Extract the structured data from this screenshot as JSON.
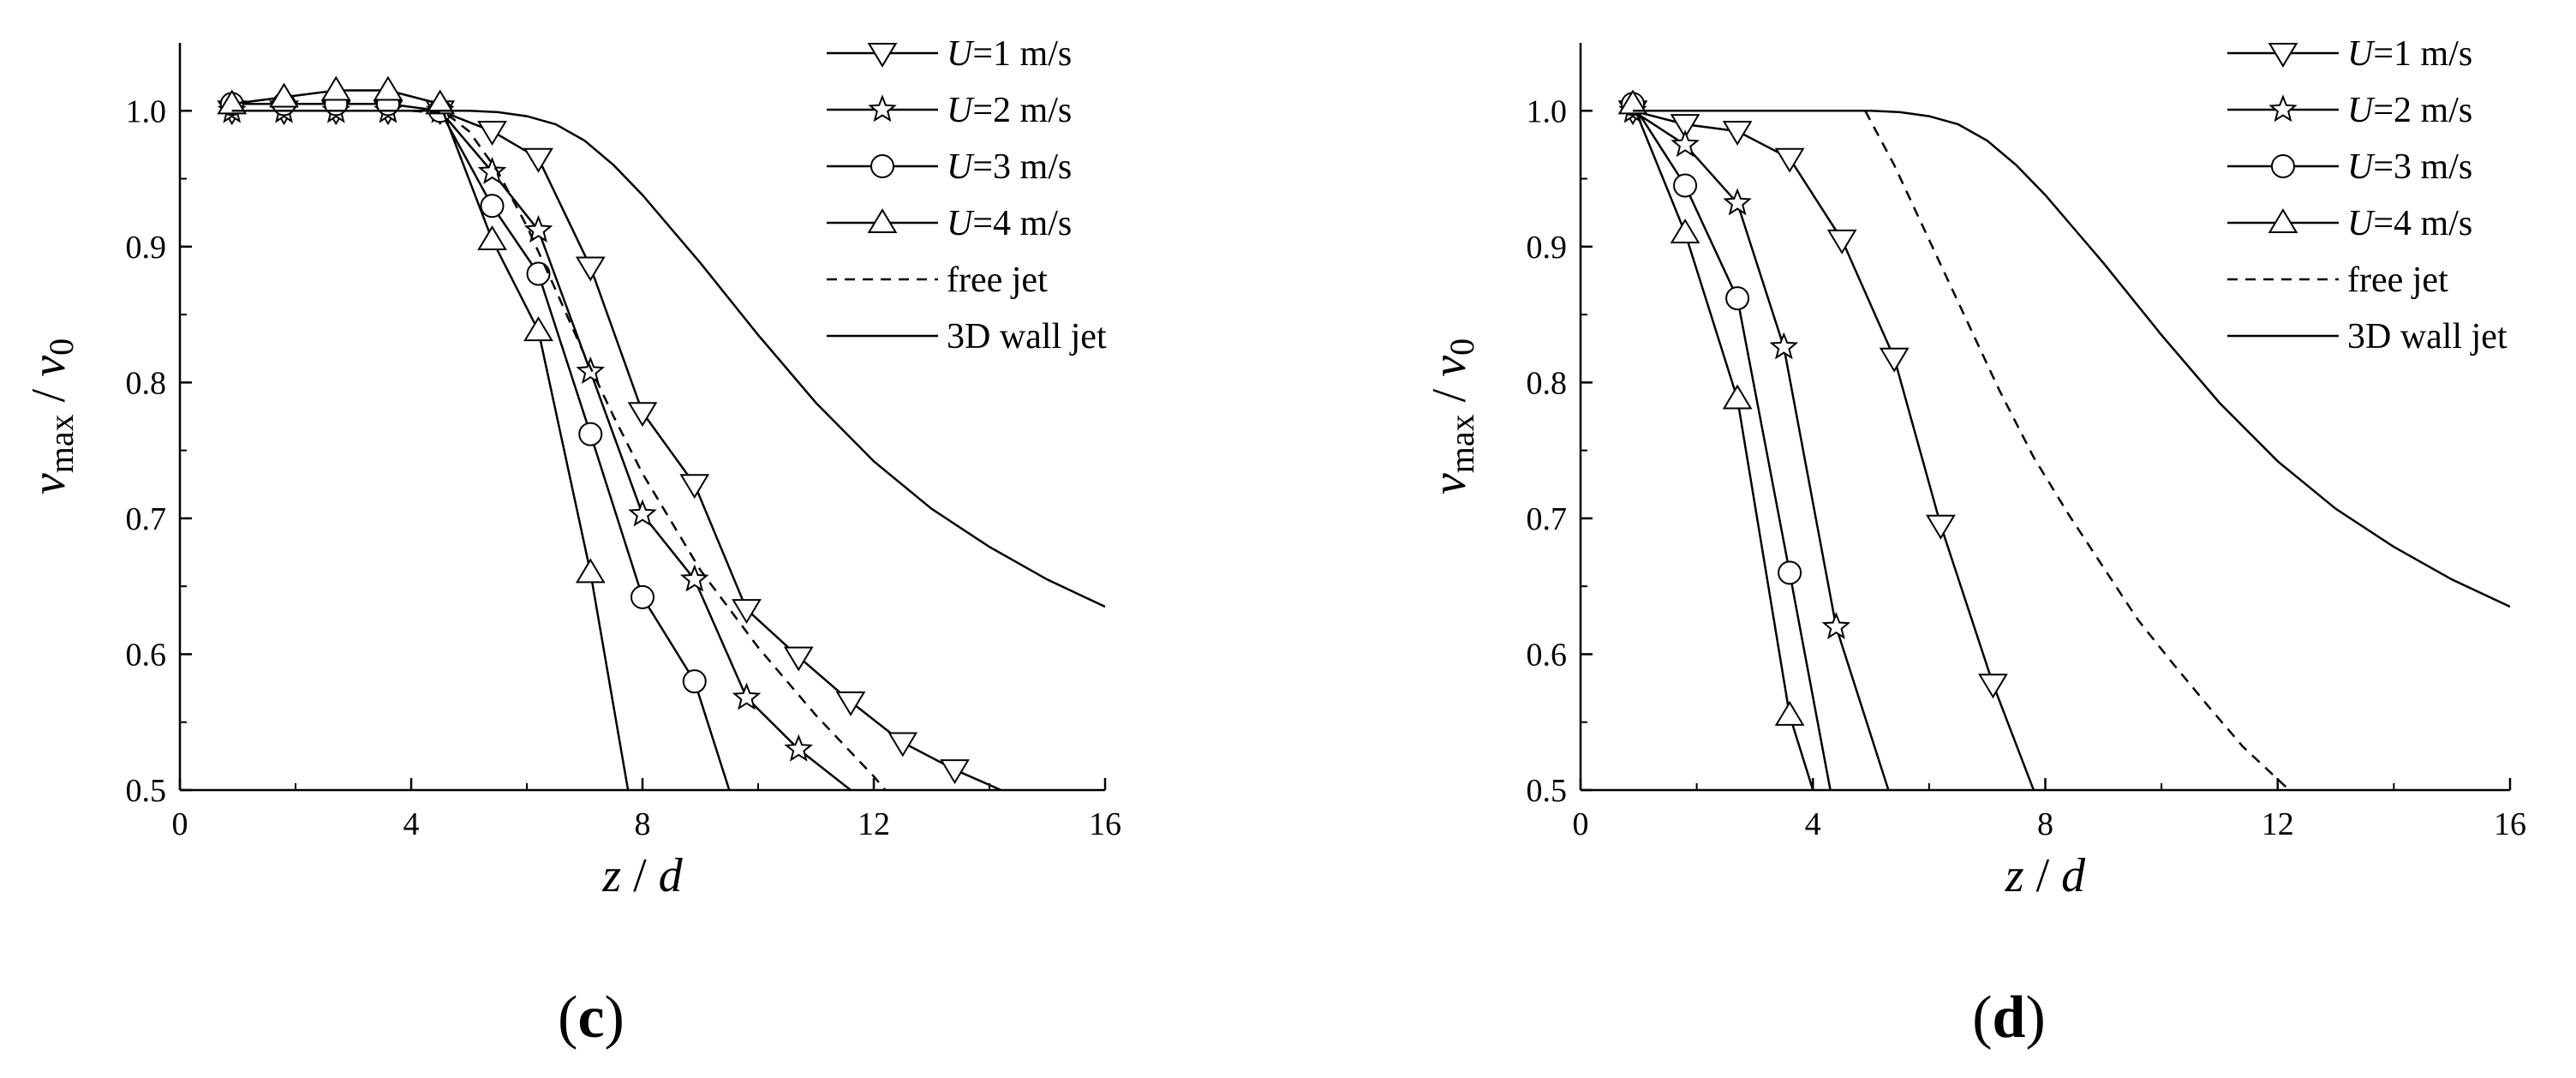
{
  "chart_data": [
    {
      "panel_label": "(c)",
      "type": "line",
      "xlabel": "z / d",
      "ylabel": "v_max / v_0",
      "xlim": [
        0,
        16
      ],
      "ylim": [
        0.5,
        1.05
      ],
      "xticks": [
        0,
        4,
        8,
        12,
        16
      ],
      "yticks": [
        0.5,
        0.6,
        0.7,
        0.8,
        0.9,
        1.0
      ],
      "grid": false,
      "legend": "top-right",
      "series": [
        {
          "name": "U=1 m/s",
          "marker": "triangle-down",
          "line": "solid",
          "x": [
            0.9,
            1.8,
            2.7,
            3.6,
            4.5,
            5.4,
            6.2,
            7.1,
            8.0,
            8.9,
            9.8,
            10.7,
            11.6,
            12.5,
            13.4,
            14.2
          ],
          "y": [
            1.0,
            1.0,
            1.0,
            1.0,
            1.0,
            0.985,
            0.965,
            0.885,
            0.778,
            0.725,
            0.633,
            0.598,
            0.565,
            0.535,
            0.515,
            0.5
          ]
        },
        {
          "name": "U=2 m/s",
          "marker": "star",
          "line": "solid",
          "x": [
            0.9,
            1.8,
            2.7,
            3.6,
            4.5,
            5.4,
            6.2,
            7.1,
            8.0,
            8.9,
            9.8,
            10.7,
            11.6
          ],
          "y": [
            1.0,
            1.0,
            1.0,
            1.0,
            1.0,
            0.955,
            0.912,
            0.808,
            0.703,
            0.655,
            0.568,
            0.53,
            0.5
          ]
        },
        {
          "name": "U=3 m/s",
          "marker": "circle",
          "line": "solid",
          "x": [
            0.9,
            1.8,
            2.7,
            3.6,
            4.5,
            5.4,
            6.2,
            7.1,
            8.0,
            8.9,
            9.5
          ],
          "y": [
            1.005,
            1.005,
            1.005,
            1.005,
            1.0,
            0.93,
            0.88,
            0.762,
            0.642,
            0.58,
            0.5
          ]
        },
        {
          "name": "U=4 m/s",
          "marker": "triangle-up",
          "line": "solid",
          "x": [
            0.9,
            1.8,
            2.7,
            3.6,
            4.5,
            5.4,
            6.2,
            7.1,
            7.75
          ],
          "y": [
            1.005,
            1.01,
            1.015,
            1.015,
            1.005,
            0.905,
            0.838,
            0.66,
            0.5
          ]
        },
        {
          "name": "free jet",
          "marker": "none",
          "line": "dashed",
          "x": [
            0.9,
            4.0,
            4.6,
            5.0,
            5.5,
            6.0,
            6.5,
            7.0,
            7.5,
            8.0,
            9.0,
            10.0,
            11.0,
            12.0,
            12.2
          ],
          "y": [
            1.0,
            1.0,
            0.998,
            0.985,
            0.955,
            0.915,
            0.868,
            0.82,
            0.775,
            0.733,
            0.662,
            0.605,
            0.555,
            0.51,
            0.5
          ]
        },
        {
          "name": "3D wall jet",
          "marker": "none",
          "line": "solid",
          "x": [
            0.9,
            2,
            3,
            4,
            5,
            5.5,
            6,
            6.5,
            7,
            7.5,
            8,
            9,
            10,
            11,
            12,
            13,
            14,
            15,
            16
          ],
          "y": [
            1.0,
            1.0,
            1.0,
            1.0,
            1.0,
            0.999,
            0.996,
            0.99,
            0.978,
            0.96,
            0.938,
            0.888,
            0.835,
            0.785,
            0.742,
            0.707,
            0.679,
            0.655,
            0.635
          ]
        }
      ]
    },
    {
      "panel_label": "(d)",
      "type": "line",
      "xlabel": "z / d",
      "ylabel": "v_max / v_0",
      "xlim": [
        0,
        16
      ],
      "ylim": [
        0.5,
        1.05
      ],
      "xticks": [
        0,
        4,
        8,
        12,
        16
      ],
      "yticks": [
        0.5,
        0.6,
        0.7,
        0.8,
        0.9,
        1.0
      ],
      "grid": false,
      "legend": "top-right",
      "series": [
        {
          "name": "U=1 m/s",
          "marker": "triangle-down",
          "line": "solid",
          "x": [
            0.9,
            1.8,
            2.7,
            3.6,
            4.5,
            5.4,
            6.2,
            7.1,
            7.8
          ],
          "y": [
            1.0,
            0.99,
            0.985,
            0.965,
            0.905,
            0.818,
            0.695,
            0.578,
            0.5
          ]
        },
        {
          "name": "U=2 m/s",
          "marker": "star",
          "line": "solid",
          "x": [
            0.9,
            1.8,
            2.7,
            3.5,
            4.4,
            5.3
          ],
          "y": [
            1.0,
            0.975,
            0.932,
            0.826,
            0.62,
            0.5
          ]
        },
        {
          "name": "U=3 m/s",
          "marker": "circle",
          "line": "solid",
          "x": [
            0.9,
            1.8,
            2.7,
            3.6,
            4.3
          ],
          "y": [
            1.005,
            0.945,
            0.862,
            0.66,
            0.5
          ]
        },
        {
          "name": "U=4 m/s",
          "marker": "triangle-up",
          "line": "solid",
          "x": [
            0.9,
            1.8,
            2.7,
            3.6,
            4.0
          ],
          "y": [
            1.005,
            0.91,
            0.788,
            0.555,
            0.5
          ]
        },
        {
          "name": "free jet",
          "marker": "none",
          "line": "dashed",
          "x": [
            4.9,
            5.4,
            6.0,
            6.6,
            7.2,
            7.8,
            8.4,
            9.0,
            9.6,
            10.2,
            10.8,
            11.4,
            12.0,
            12.2
          ],
          "y": [
            1.0,
            0.96,
            0.905,
            0.85,
            0.795,
            0.745,
            0.703,
            0.664,
            0.625,
            0.593,
            0.562,
            0.532,
            0.508,
            0.5
          ]
        },
        {
          "name": "3D wall jet",
          "marker": "none",
          "line": "solid",
          "x": [
            0.9,
            2,
            3,
            4,
            5,
            5.5,
            6,
            6.5,
            7,
            7.5,
            8,
            9,
            10,
            11,
            12,
            13,
            14,
            15,
            16
          ],
          "y": [
            1.0,
            1.0,
            1.0,
            1.0,
            1.0,
            0.999,
            0.996,
            0.99,
            0.978,
            0.96,
            0.938,
            0.888,
            0.835,
            0.785,
            0.742,
            0.707,
            0.679,
            0.655,
            0.635
          ]
        }
      ]
    }
  ]
}
